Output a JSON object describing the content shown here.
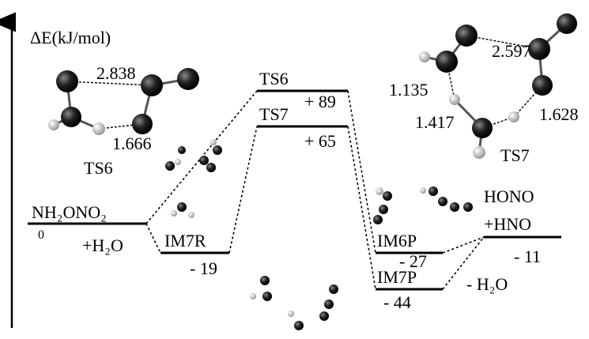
{
  "axis_label": "ΔE(kJ/mol)",
  "levels": [
    {
      "name": "NH₂ONO₂",
      "energy": 0,
      "note": "+H₂O"
    },
    {
      "name": "IM7R",
      "energy": "- 19"
    },
    {
      "name": "TS6",
      "energy": "+ 89"
    },
    {
      "name": "TS7",
      "energy": "+ 65"
    },
    {
      "name": "IM6P",
      "energy": "- 27"
    },
    {
      "name": "IM7P",
      "energy": "- 44"
    },
    {
      "name": [
        "HONO",
        "+HNO"
      ],
      "energy": "- 11",
      "note": "- H₂O"
    }
  ],
  "structures": [
    {
      "name": "TS6",
      "distances": [
        2.838,
        1.666
      ]
    },
    {
      "name": "TS7",
      "distances": [
        2.597,
        1.135,
        1.417,
        1.628
      ]
    }
  ]
}
